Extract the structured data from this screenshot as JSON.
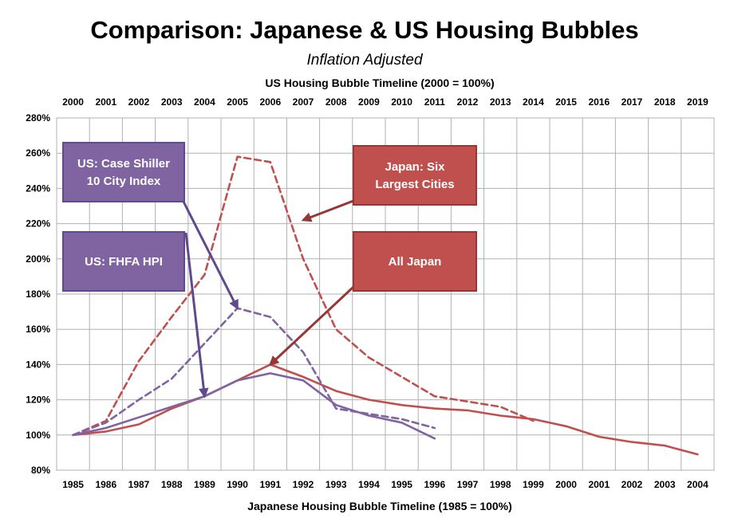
{
  "chart_data": {
    "type": "line",
    "title": "Comparison: Japanese & US Housing Bubbles",
    "subtitle": "Inflation Adjusted",
    "x2label": "US Housing Bubble Timeline (2000 = 100%)",
    "xlabel": "Japanese Housing Bubble Timeline (1985 = 100%)",
    "x_top_ticks": [
      "2000",
      "2001",
      "2002",
      "2003",
      "2004",
      "2005",
      "2006",
      "2007",
      "2008",
      "2009",
      "2010",
      "2011",
      "2012",
      "2013",
      "2014",
      "2015",
      "2016",
      "2017",
      "2018",
      "2019"
    ],
    "x_bottom_ticks": [
      "1985",
      "1986",
      "1987",
      "1988",
      "1989",
      "1990",
      "1991",
      "1992",
      "1993",
      "1994",
      "1995",
      "1996",
      "1997",
      "1998",
      "1999",
      "2000",
      "2001",
      "2002",
      "2003",
      "2004"
    ],
    "y_ticks": [
      "80%",
      "100%",
      "120%",
      "140%",
      "160%",
      "180%",
      "200%",
      "220%",
      "240%",
      "260%",
      "280%"
    ],
    "ylim": [
      80,
      280
    ],
    "grid": true,
    "colors": {
      "japan": "#c0504d",
      "us": "#8064a2",
      "arrow_japan": "#953735",
      "arrow_us": "#5f4a8b"
    },
    "series": [
      {
        "name": "Japan: Six Largest Cities",
        "style": "dashed",
        "color_key": "japan",
        "x": [
          0,
          1,
          2,
          3,
          4,
          5,
          6,
          7,
          8,
          9,
          10,
          11,
          12,
          13,
          14
        ],
        "y": [
          100,
          108,
          142,
          167,
          191,
          258,
          255,
          200,
          160,
          144,
          133,
          122,
          119,
          116,
          108
        ]
      },
      {
        "name": "All Japan",
        "style": "solid",
        "color_key": "japan",
        "x": [
          0,
          1,
          2,
          3,
          4,
          5,
          6,
          7,
          8,
          9,
          10,
          11,
          12,
          13,
          14,
          15,
          16,
          17,
          18,
          19
        ],
        "y": [
          100,
          102,
          106,
          115,
          122,
          131,
          140,
          133,
          125,
          120,
          117,
          115,
          114,
          111,
          109,
          105,
          99,
          96,
          94,
          89
        ]
      },
      {
        "name": "US: Case Shiller 10 City Index",
        "style": "dashed",
        "color_key": "us",
        "x": [
          0,
          1,
          2,
          3,
          4,
          5,
          6,
          7,
          8,
          9,
          10,
          11
        ],
        "y": [
          100,
          107,
          120,
          132,
          152,
          172,
          167,
          147,
          115,
          112,
          109,
          104
        ]
      },
      {
        "name": "US: FHFA HPI",
        "style": "solid",
        "color_key": "us",
        "x": [
          0,
          1,
          2,
          3,
          4,
          5,
          6,
          7,
          8,
          9,
          10,
          11
        ],
        "y": [
          100,
          104,
          110,
          116,
          122,
          131,
          135,
          131,
          117,
          111,
          107,
          98
        ]
      }
    ],
    "annotations": [
      {
        "lines": [
          "US: Case Shiller",
          "10 City Index"
        ],
        "color_key": "us",
        "arrow_key": "arrow_us",
        "target_x": 5,
        "target_y": 172
      },
      {
        "lines": [
          "US: FHFA HPI"
        ],
        "color_key": "us",
        "arrow_key": "arrow_us",
        "target_x": 4,
        "target_y": 122
      },
      {
        "lines": [
          "Japan: Six",
          "Largest Cities"
        ],
        "color_key": "japan",
        "arrow_key": "arrow_japan",
        "target_x": 7,
        "target_y": 222
      },
      {
        "lines": [
          "All Japan"
        ],
        "color_key": "japan",
        "arrow_key": "arrow_japan",
        "target_x": 6,
        "target_y": 140
      }
    ]
  }
}
